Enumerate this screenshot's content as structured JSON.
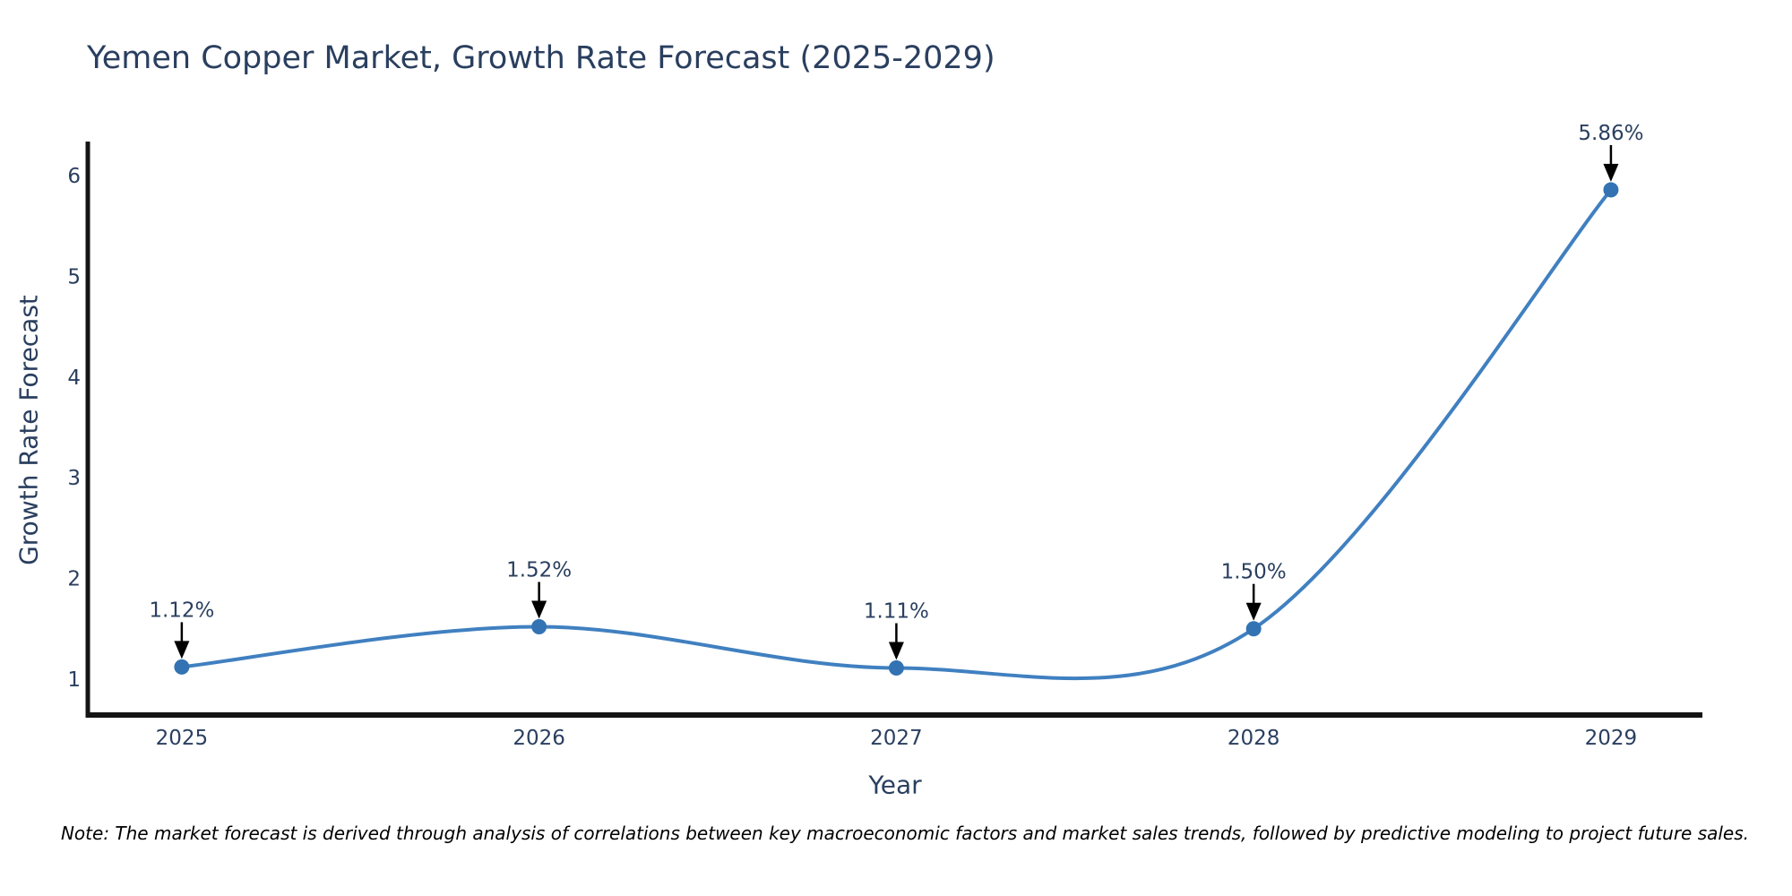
{
  "title": "Yemen Copper Market, Growth Rate Forecast (2025-2029)",
  "note": "Note: The market forecast is derived through analysis of correlations between key macroeconomic factors and market sales trends, followed by predictive modeling to project future sales.",
  "chart_data": {
    "type": "line",
    "title": "Yemen Copper Market, Growth Rate Forecast (2025-2029)",
    "xlabel": "Year",
    "ylabel": "Growth Rate Forecast",
    "x": [
      2025,
      2026,
      2027,
      2028,
      2029
    ],
    "values": [
      1.12,
      1.52,
      1.11,
      1.5,
      5.86
    ],
    "point_labels": [
      "1.12%",
      "1.52%",
      "1.11%",
      "1.50%",
      "5.86%"
    ],
    "y_ticks": [
      1,
      2,
      3,
      4,
      5,
      6
    ],
    "xlim": [
      2024.737,
      2029.256
    ],
    "ylim": [
      0.643,
      6.34
    ],
    "line_shape": "spline",
    "grid": false,
    "legend_position": "none",
    "colors": {
      "line": "#4080c0",
      "marker": "#3373b3",
      "axis_line": "#141414",
      "tick_text": "#2a3f5f",
      "annotation_text": "#2a3f5f",
      "arrow": "#000000",
      "background": "#ffffff"
    }
  }
}
